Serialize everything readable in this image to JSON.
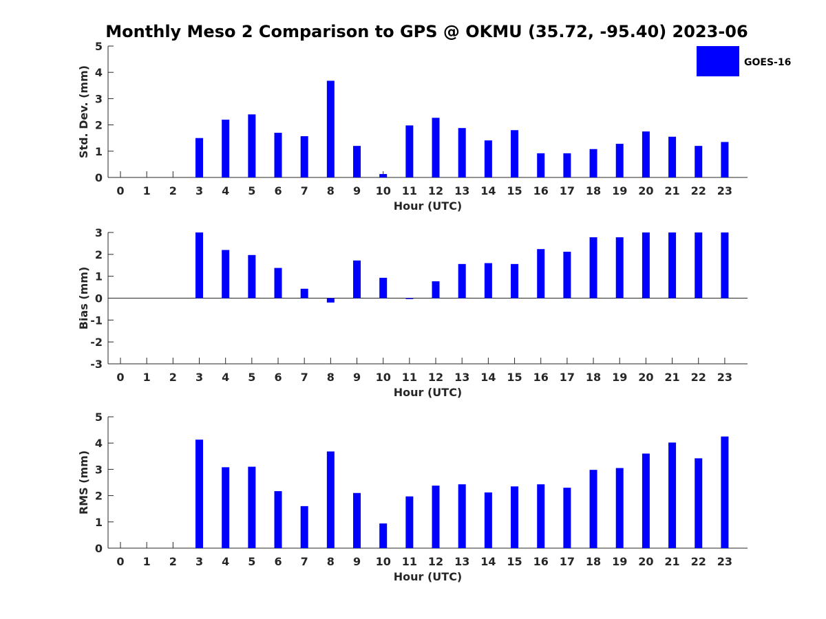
{
  "colors": {
    "bar": "#0000FF",
    "axis": "#262626"
  },
  "title": "Monthly Meso 2 Comparison to GPS @ OKMU (35.72, -95.40) 2023-06",
  "legend": {
    "label": "GOES-16",
    "position": "top-right"
  },
  "chart_data": [
    {
      "type": "bar",
      "xlabel": "Hour (UTC)",
      "ylabel": "Std. Dev. (mm)",
      "ylim": [
        0,
        5
      ],
      "yticks": [
        0,
        1,
        2,
        3,
        4,
        5
      ],
      "categories": [
        "0",
        "1",
        "2",
        "3",
        "4",
        "5",
        "6",
        "7",
        "8",
        "9",
        "10",
        "11",
        "12",
        "13",
        "14",
        "15",
        "16",
        "17",
        "18",
        "19",
        "20",
        "21",
        "22",
        "23"
      ],
      "series": [
        {
          "name": "GOES-16",
          "values": [
            null,
            null,
            null,
            1.5,
            2.2,
            2.4,
            1.7,
            1.57,
            3.68,
            1.2,
            0.13,
            1.98,
            2.27,
            1.88,
            1.41,
            1.8,
            0.92,
            0.92,
            1.08,
            1.28,
            1.75,
            1.55,
            1.2,
            1.35
          ]
        }
      ],
      "grid": false
    },
    {
      "type": "bar",
      "xlabel": "Hour (UTC)",
      "ylabel": "Bias (mm)",
      "ylim": [
        -3,
        3
      ],
      "yticks": [
        -3,
        -2,
        -1,
        0,
        1,
        2,
        3
      ],
      "categories": [
        "0",
        "1",
        "2",
        "3",
        "4",
        "5",
        "6",
        "7",
        "8",
        "9",
        "10",
        "11",
        "12",
        "13",
        "14",
        "15",
        "16",
        "17",
        "18",
        "19",
        "20",
        "21",
        "22",
        "23"
      ],
      "series": [
        {
          "name": "GOES-16",
          "values": [
            null,
            null,
            null,
            3.0,
            2.2,
            1.97,
            1.38,
            0.43,
            -0.2,
            1.72,
            0.93,
            -0.04,
            0.77,
            1.56,
            1.6,
            1.56,
            2.24,
            2.12,
            2.78,
            2.78,
            3.0,
            3.0,
            3.0,
            3.0
          ]
        }
      ],
      "grid": false
    },
    {
      "type": "bar",
      "xlabel": "Hour (UTC)",
      "ylabel": "RMS (mm)",
      "ylim": [
        0,
        5
      ],
      "yticks": [
        0,
        1,
        2,
        3,
        4,
        5
      ],
      "categories": [
        "0",
        "1",
        "2",
        "3",
        "4",
        "5",
        "6",
        "7",
        "8",
        "9",
        "10",
        "11",
        "12",
        "13",
        "14",
        "15",
        "16",
        "17",
        "18",
        "19",
        "20",
        "21",
        "22",
        "23"
      ],
      "series": [
        {
          "name": "GOES-16",
          "values": [
            null,
            null,
            null,
            4.13,
            3.08,
            3.1,
            2.17,
            1.6,
            3.68,
            2.1,
            0.94,
            1.97,
            2.38,
            2.43,
            2.12,
            2.35,
            2.43,
            2.3,
            2.98,
            3.05,
            3.6,
            4.02,
            3.42,
            4.25
          ]
        }
      ],
      "grid": false
    }
  ]
}
